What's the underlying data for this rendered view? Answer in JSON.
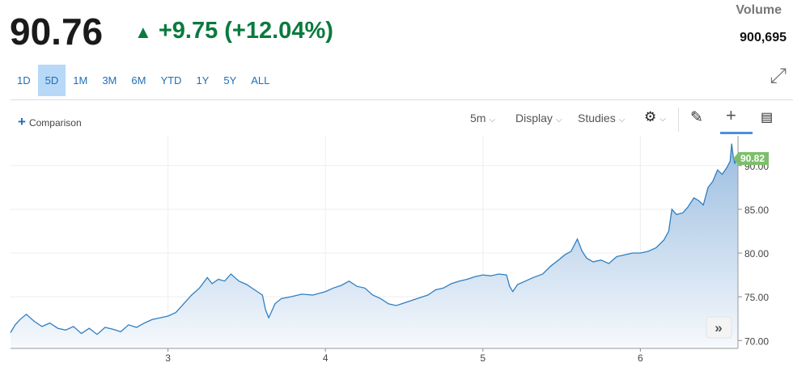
{
  "header": {
    "price": "90.76",
    "change": "+9.75 (+12.04%)",
    "up_arrow_icon": "triangle-up",
    "volume_label": "Volume",
    "volume": "900,695",
    "color_up": "#0a7a3e"
  },
  "ranges": [
    "1D",
    "5D",
    "1M",
    "3M",
    "6M",
    "YTD",
    "1Y",
    "5Y",
    "ALL"
  ],
  "active_range": "5D",
  "toolbar": {
    "comparison": "Comparison",
    "interval": "5m",
    "display": "Display",
    "studies": "Studies"
  },
  "chart_data": {
    "type": "area",
    "x_ticks": [
      "3",
      "4",
      "5",
      "6"
    ],
    "y_ticks": [
      "70.00",
      "75.00",
      "80.00",
      "85.00",
      "90.00"
    ],
    "xlim": [
      2.0,
      6.62
    ],
    "ylim": [
      69.1,
      93.4
    ],
    "last_price_label": "90.82",
    "line_color": "#2f7fc1",
    "label_color": "#7cbf6a",
    "x": [
      2.0,
      2.03,
      2.06,
      2.1,
      2.15,
      2.2,
      2.25,
      2.3,
      2.35,
      2.4,
      2.45,
      2.5,
      2.55,
      2.6,
      2.65,
      2.7,
      2.75,
      2.8,
      2.85,
      2.9,
      2.95,
      3.0,
      3.05,
      3.1,
      3.15,
      3.2,
      3.25,
      3.28,
      3.32,
      3.36,
      3.4,
      3.45,
      3.5,
      3.55,
      3.6,
      3.62,
      3.64,
      3.68,
      3.72,
      3.78,
      3.85,
      3.92,
      4.0,
      4.05,
      4.1,
      4.15,
      4.2,
      4.25,
      4.3,
      4.35,
      4.4,
      4.45,
      4.5,
      4.55,
      4.6,
      4.65,
      4.7,
      4.75,
      4.8,
      4.85,
      4.9,
      4.95,
      5.0,
      5.05,
      5.1,
      5.15,
      5.17,
      5.19,
      5.22,
      5.27,
      5.32,
      5.38,
      5.43,
      5.48,
      5.52,
      5.56,
      5.6,
      5.63,
      5.66,
      5.7,
      5.75,
      5.8,
      5.85,
      5.9,
      5.95,
      6.0,
      6.05,
      6.1,
      6.15,
      6.18,
      6.2,
      6.23,
      6.27,
      6.3,
      6.34,
      6.37,
      6.4,
      6.43,
      6.46,
      6.49,
      6.52,
      6.55,
      6.57,
      6.58,
      6.59,
      6.6,
      6.61,
      6.62
    ],
    "y": [
      70.9,
      71.8,
      72.4,
      73.0,
      72.2,
      71.6,
      72.0,
      71.4,
      71.2,
      71.6,
      70.8,
      71.4,
      70.7,
      71.5,
      71.3,
      71.0,
      71.8,
      71.5,
      72.0,
      72.4,
      72.6,
      72.8,
      73.2,
      74.2,
      75.2,
      76.0,
      77.2,
      76.5,
      77.0,
      76.8,
      77.6,
      76.8,
      76.4,
      75.8,
      75.2,
      73.5,
      72.6,
      74.2,
      74.8,
      75.0,
      75.3,
      75.2,
      75.6,
      76.0,
      76.3,
      76.8,
      76.2,
      76.0,
      75.2,
      74.8,
      74.2,
      74.0,
      74.3,
      74.6,
      74.9,
      75.2,
      75.8,
      76.0,
      76.5,
      76.8,
      77.0,
      77.3,
      77.5,
      77.4,
      77.6,
      77.5,
      76.2,
      75.6,
      76.4,
      76.8,
      77.2,
      77.6,
      78.5,
      79.2,
      79.8,
      80.2,
      81.6,
      80.2,
      79.4,
      79.0,
      79.2,
      78.8,
      79.6,
      79.8,
      80.0,
      80.0,
      80.2,
      80.6,
      81.5,
      82.5,
      85.0,
      84.4,
      84.6,
      85.2,
      86.3,
      86.0,
      85.5,
      87.5,
      88.2,
      89.5,
      89.0,
      89.8,
      90.5,
      92.5,
      91.0,
      90.2,
      91.0,
      90.8
    ]
  }
}
